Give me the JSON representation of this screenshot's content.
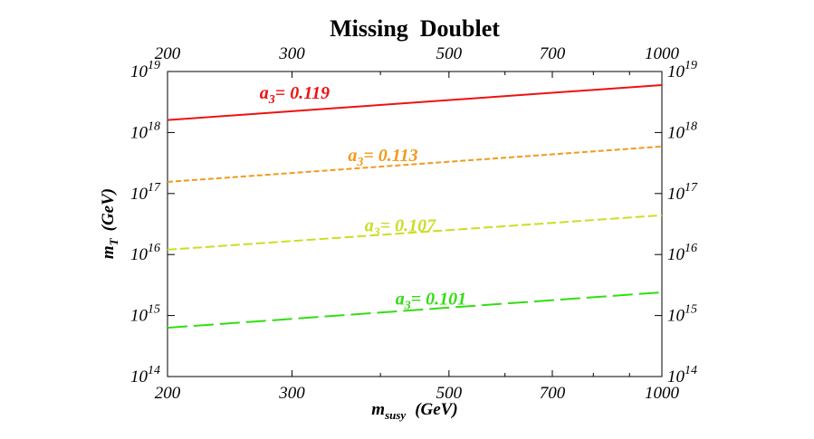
{
  "chart_data": {
    "type": "line",
    "title": "Missing  Doublet",
    "xlabel": {
      "main": "m",
      "sub": "susy",
      "unit": "(GeV)"
    },
    "ylabel": {
      "main": "m",
      "sub": "T",
      "unit": "(GeV)"
    },
    "x_scale": "log",
    "y_scale": "log",
    "xlim": [
      200,
      1000
    ],
    "ylim": [
      100000000000000.0,
      1e+19
    ],
    "x_ticks": [
      {
        "value": 200,
        "label": "200"
      },
      {
        "value": 300,
        "label": "300"
      },
      {
        "value": 500,
        "label": "500"
      },
      {
        "value": 700,
        "label": "700"
      },
      {
        "value": 1000,
        "label": "1000"
      }
    ],
    "y_ticks": [
      {
        "value": 100000000000000.0,
        "base": "10",
        "exp": "14"
      },
      {
        "value": 1000000000000000.0,
        "base": "10",
        "exp": "15"
      },
      {
        "value": 1e+16,
        "base": "10",
        "exp": "16"
      },
      {
        "value": 1e+17,
        "base": "10",
        "exp": "17"
      },
      {
        "value": 1e+18,
        "base": "10",
        "exp": "18"
      },
      {
        "value": 1e+19,
        "base": "10",
        "exp": "19"
      }
    ],
    "grid": false,
    "series": [
      {
        "name": "a3= 0.119",
        "label_prefix": "a",
        "label_sub": "3",
        "label_value": "= 0.119",
        "color": "#ee1111",
        "dash": "solid",
        "x": [
          200,
          1000
        ],
        "y": [
          1.6e+18,
          6e+18
        ],
        "label_at": [
          270,
          3.6e+18
        ]
      },
      {
        "name": "a3= 0.113",
        "label_prefix": "a",
        "label_sub": "3",
        "label_value": "= 0.113",
        "color": "#f29a1d",
        "dash": "short",
        "x": [
          200,
          1000
        ],
        "y": [
          1.55e+17,
          5.9e+17
        ],
        "label_at": [
          360,
          3.4e+17
        ]
      },
      {
        "name": "a3= 0.107",
        "label_prefix": "a",
        "label_sub": "3",
        "label_value": "= 0.107",
        "color": "#ccdd22",
        "dash": "medium",
        "x": [
          200,
          1000
        ],
        "y": [
          1.2e+16,
          4.4e+16
        ],
        "label_at": [
          380,
          2.4e+16
        ]
      },
      {
        "name": "a3= 0.101",
        "label_prefix": "a",
        "label_sub": "3",
        "label_value": "= 0.101",
        "color": "#33dd11",
        "dash": "long",
        "x": [
          200,
          1000
        ],
        "y": [
          630000000000000.0,
          2400000000000000.0
        ],
        "label_at": [
          420,
          1500000000000000.0
        ]
      }
    ]
  }
}
